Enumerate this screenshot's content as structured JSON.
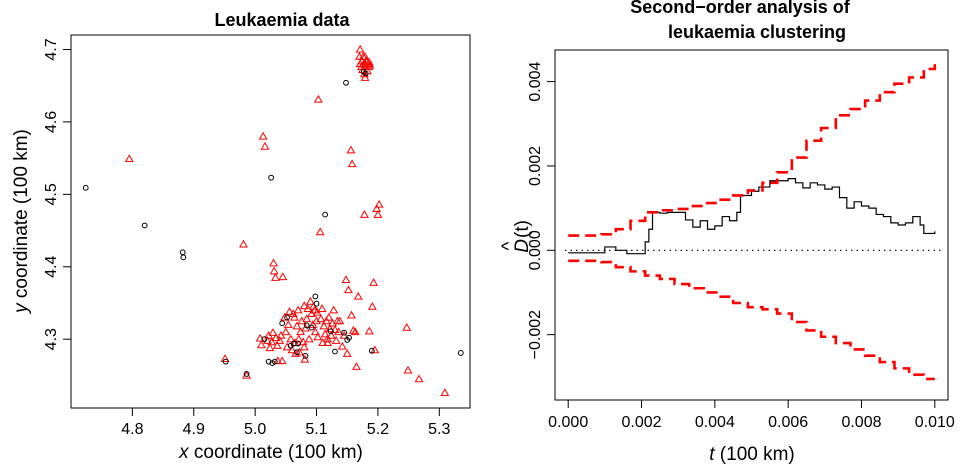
{
  "chart_data": [
    {
      "type": "scatter",
      "title": "Leukaemia data",
      "xlabel": {
        "var": "x",
        "text": " coordinate (100 km)"
      },
      "ylabel": {
        "var": "y",
        "text": " coordinate (100 km)"
      },
      "xlim": [
        4.7,
        5.35
      ],
      "ylim": [
        4.205,
        4.72
      ],
      "xticks": [
        "4.8",
        "4.9",
        "5.0",
        "5.1",
        "5.2",
        "5.3"
      ],
      "yticks": [
        "4.3",
        "4.4",
        "4.5",
        "4.6",
        "4.7"
      ],
      "grid": false,
      "series": [
        {
          "marker": "triangle",
          "color": "#ff0000",
          "points": [
            [
              4.795,
              4.549
            ],
            [
              4.951,
              4.273
            ],
            [
              4.986,
              4.25
            ],
            [
              4.981,
              4.431
            ],
            [
              5.008,
              4.301
            ],
            [
              5.01,
              4.292
            ],
            [
              5.013,
              4.58
            ],
            [
              5.016,
              4.566
            ],
            [
              5.02,
              4.298
            ],
            [
              5.022,
              4.305
            ],
            [
              5.024,
              4.288
            ],
            [
              5.027,
              4.296
            ],
            [
              5.029,
              4.309
            ],
            [
              5.03,
              4.405
            ],
            [
              5.031,
              4.394
            ],
            [
              5.033,
              4.385
            ],
            [
              5.034,
              4.302
            ],
            [
              5.036,
              4.291
            ],
            [
              5.037,
              4.27
            ],
            [
              5.04,
              4.298
            ],
            [
              5.042,
              4.305
            ],
            [
              5.044,
              4.27
            ],
            [
              5.045,
              4.386
            ],
            [
              5.048,
              4.33
            ],
            [
              5.05,
              4.31
            ],
            [
              5.052,
              4.289
            ],
            [
              5.054,
              4.32
            ],
            [
              5.056,
              4.338
            ],
            [
              5.058,
              4.3
            ],
            [
              5.06,
              4.285
            ],
            [
              5.062,
              4.335
            ],
            [
              5.064,
              4.33
            ],
            [
              5.065,
              4.295
            ],
            [
              5.066,
              4.28
            ],
            [
              5.068,
              4.318
            ],
            [
              5.07,
              4.34
            ],
            [
              5.071,
              4.3
            ],
            [
              5.072,
              4.282
            ],
            [
              5.074,
              4.31
            ],
            [
              5.076,
              4.325
            ],
            [
              5.078,
              4.296
            ],
            [
              5.08,
              4.346
            ],
            [
              5.08,
              4.289
            ],
            [
              5.081,
              4.272
            ],
            [
              5.082,
              4.315
            ],
            [
              5.084,
              4.328
            ],
            [
              5.086,
              4.342
            ],
            [
              5.088,
              4.3
            ],
            [
              5.09,
              4.352
            ],
            [
              5.092,
              4.335
            ],
            [
              5.094,
              4.32
            ],
            [
              5.095,
              4.345
            ],
            [
              5.097,
              4.34
            ],
            [
              5.098,
              4.31
            ],
            [
              5.1,
              4.325
            ],
            [
              5.101,
              4.337
            ],
            [
              5.102,
              4.303
            ],
            [
              5.103,
              4.631
            ],
            [
              5.106,
              4.448
            ],
            [
              5.107,
              4.328
            ],
            [
              5.109,
              4.342
            ],
            [
              5.11,
              4.295
            ],
            [
              5.112,
              4.318
            ],
            [
              5.114,
              4.307
            ],
            [
              5.116,
              4.325
            ],
            [
              5.118,
              4.3
            ],
            [
              5.12,
              4.33
            ],
            [
              5.122,
              4.314
            ],
            [
              5.124,
              4.305
            ],
            [
              5.126,
              4.322
            ],
            [
              5.128,
              4.34
            ],
            [
              5.13,
              4.313
            ],
            [
              5.132,
              4.298
            ],
            [
              5.134,
              4.325
            ],
            [
              5.136,
              4.31
            ],
            [
              5.138,
              4.325
            ],
            [
              5.142,
              4.29
            ],
            [
              5.145,
              4.305
            ],
            [
              5.148,
              4.382
            ],
            [
              5.152,
              4.368
            ],
            [
              5.156,
              4.561
            ],
            [
              5.158,
              4.542
            ],
            [
              5.16,
              4.312
            ],
            [
              5.163,
              4.31
            ],
            [
              5.165,
              4.262
            ],
            [
              5.168,
              4.359
            ],
            [
              5.17,
              4.69
            ],
            [
              5.171,
              4.7
            ],
            [
              5.171,
              4.68
            ],
            [
              5.173,
              4.676
            ],
            [
              5.174,
              4.684
            ],
            [
              5.175,
              4.672
            ],
            [
              5.176,
              4.69
            ],
            [
              5.177,
              4.68
            ],
            [
              5.178,
              4.666
            ],
            [
              5.179,
              4.69
            ],
            [
              5.18,
              4.678
            ],
            [
              5.181,
              4.684
            ],
            [
              5.182,
              4.683
            ],
            [
              5.183,
              4.67
            ],
            [
              5.184,
              4.68
            ],
            [
              5.185,
              4.676
            ],
            [
              5.186,
              4.682
            ],
            [
              5.187,
              4.678
            ],
            [
              5.179,
              4.661
            ],
            [
              5.178,
              4.472
            ],
            [
              5.186,
              4.311
            ],
            [
              5.191,
              4.345
            ],
            [
              5.193,
              4.378
            ],
            [
              5.195,
              4.285
            ],
            [
              5.198,
              4.48
            ],
            [
              5.2,
              4.472
            ],
            [
              5.202,
              4.486
            ],
            [
              5.247,
              4.316
            ],
            [
              5.249,
              4.257
            ],
            [
              5.267,
              4.245
            ],
            [
              5.309,
              4.226
            ],
            [
              5.157,
              4.333
            ],
            [
              5.15,
              4.28
            ],
            [
              5.118,
              4.295
            ]
          ]
        },
        {
          "marker": "circle",
          "color": "#000000",
          "points": [
            [
              4.724,
              4.509
            ],
            [
              4.82,
              4.457
            ],
            [
              4.882,
              4.42
            ],
            [
              4.883,
              4.413
            ],
            [
              4.952,
              4.269
            ],
            [
              4.986,
              4.252
            ],
            [
              5.015,
              4.3
            ],
            [
              5.022,
              4.269
            ],
            [
              5.026,
              4.523
            ],
            [
              5.028,
              4.267
            ],
            [
              5.032,
              4.269
            ],
            [
              5.044,
              4.322
            ],
            [
              5.052,
              4.33
            ],
            [
              5.058,
              4.291
            ],
            [
              5.063,
              4.294
            ],
            [
              5.068,
              4.282
            ],
            [
              5.07,
              4.294
            ],
            [
              5.082,
              4.277
            ],
            [
              5.084,
              4.319
            ],
            [
              5.092,
              4.316
            ],
            [
              5.098,
              4.359
            ],
            [
              5.1,
              4.349
            ],
            [
              5.114,
              4.472
            ],
            [
              5.123,
              4.311
            ],
            [
              5.13,
              4.283
            ],
            [
              5.145,
              4.309
            ],
            [
              5.148,
              4.654
            ],
            [
              5.15,
              4.299
            ],
            [
              5.153,
              4.302
            ],
            [
              5.177,
              4.669
            ],
            [
              5.18,
              4.667
            ],
            [
              5.19,
              4.284
            ],
            [
              5.335,
              4.281
            ]
          ]
        }
      ]
    },
    {
      "type": "line",
      "title": [
        "Second−order analysis of",
        "leukaemia clustering"
      ],
      "xlabel": {
        "var": "t",
        "text": " (100 km)"
      },
      "ylabel": {
        "var": "D",
        "text": "(t)"
      },
      "xlim": [
        -0.00036,
        0.01036
      ],
      "ylim": [
        -0.00355,
        0.00475
      ],
      "xticks": [
        "0.000",
        "0.002",
        "0.004",
        "0.006",
        "0.008",
        "0.010"
      ],
      "xtick_values": [
        0,
        0.002,
        0.004,
        0.006,
        0.008,
        0.01
      ],
      "yticks": [
        "−0.002",
        "0.000",
        "0.002",
        "0.004"
      ],
      "ytick_values": [
        -0.002,
        0,
        0.002,
        0.004
      ],
      "reference_line": 0,
      "series": [
        {
          "style": "step",
          "color": "#000000",
          "points": [
            [
              0.0,
              -6e-05
            ],
            [
              0.0009,
              -6e-05
            ],
            [
              0.001,
              8e-05
            ],
            [
              0.0013,
              8e-05
            ],
            [
              0.0013,
              0.0
            ],
            [
              0.0016,
              0.0
            ],
            [
              0.0016,
              -8e-05
            ],
            [
              0.002,
              -8e-05
            ],
            [
              0.0021,
              0.0002
            ],
            [
              0.0022,
              0.0005
            ],
            [
              0.0023,
              0.0009
            ],
            [
              0.0025,
              0.00088
            ],
            [
              0.0027,
              0.0009
            ],
            [
              0.003,
              0.0009
            ],
            [
              0.0032,
              0.00072
            ],
            [
              0.0034,
              0.00055
            ],
            [
              0.0036,
              0.0007
            ],
            [
              0.0038,
              0.0005
            ],
            [
              0.004,
              0.00058
            ],
            [
              0.0042,
              0.0008
            ],
            [
              0.0044,
              0.0007
            ],
            [
              0.0046,
              0.0009
            ],
            [
              0.0047,
              0.0013
            ],
            [
              0.005,
              0.0014
            ],
            [
              0.0052,
              0.0015
            ],
            [
              0.0055,
              0.00165
            ],
            [
              0.0058,
              0.00165
            ],
            [
              0.006,
              0.0017
            ],
            [
              0.0062,
              0.0016
            ],
            [
              0.0064,
              0.00148
            ],
            [
              0.0066,
              0.0016
            ],
            [
              0.0068,
              0.00155
            ],
            [
              0.007,
              0.00145
            ],
            [
              0.0072,
              0.0015
            ],
            [
              0.0074,
              0.00125
            ],
            [
              0.0076,
              0.001
            ],
            [
              0.0078,
              0.00115
            ],
            [
              0.008,
              0.00105
            ],
            [
              0.0082,
              0.001
            ],
            [
              0.0084,
              0.00085
            ],
            [
              0.0086,
              0.0008
            ],
            [
              0.0088,
              0.00065
            ],
            [
              0.009,
              0.0006
            ],
            [
              0.0092,
              0.00065
            ],
            [
              0.0094,
              0.0008
            ],
            [
              0.0096,
              0.0006
            ],
            [
              0.0097,
              0.0004
            ],
            [
              0.0099,
              0.0004
            ],
            [
              0.01,
              0.00045
            ]
          ]
        },
        {
          "style": "dashed-step",
          "color": "#ff0000",
          "points": [
            [
              0.0,
              0.00035
            ],
            [
              0.0009,
              0.00038
            ],
            [
              0.0013,
              0.0005
            ],
            [
              0.0017,
              0.0007
            ],
            [
              0.0021,
              0.0009
            ],
            [
              0.0025,
              0.00095
            ],
            [
              0.0029,
              0.00098
            ],
            [
              0.0033,
              0.00105
            ],
            [
              0.0037,
              0.00112
            ],
            [
              0.0041,
              0.0012
            ],
            [
              0.0045,
              0.0013
            ],
            [
              0.0049,
              0.00142
            ],
            [
              0.0053,
              0.0016
            ],
            [
              0.0057,
              0.00185
            ],
            [
              0.0061,
              0.0022
            ],
            [
              0.0065,
              0.0026
            ],
            [
              0.0069,
              0.0029
            ],
            [
              0.0073,
              0.0032
            ],
            [
              0.0077,
              0.00335
            ],
            [
              0.0081,
              0.00355
            ],
            [
              0.0085,
              0.00375
            ],
            [
              0.0089,
              0.00395
            ],
            [
              0.0093,
              0.0041
            ],
            [
              0.0097,
              0.0043
            ],
            [
              0.01,
              0.0045
            ]
          ]
        },
        {
          "style": "dashed-step",
          "color": "#ff0000",
          "points": [
            [
              0.0,
              -0.00025
            ],
            [
              0.0009,
              -0.00028
            ],
            [
              0.0013,
              -0.0004
            ],
            [
              0.0017,
              -0.0005
            ],
            [
              0.0021,
              -0.0006
            ],
            [
              0.0025,
              -0.00068
            ],
            [
              0.0029,
              -0.0008
            ],
            [
              0.0033,
              -0.0009
            ],
            [
              0.0037,
              -0.001
            ],
            [
              0.0041,
              -0.0011
            ],
            [
              0.0045,
              -0.00125
            ],
            [
              0.0049,
              -0.00135
            ],
            [
              0.0053,
              -0.0014
            ],
            [
              0.0057,
              -0.0015
            ],
            [
              0.0061,
              -0.0017
            ],
            [
              0.0065,
              -0.0019
            ],
            [
              0.0069,
              -0.00205
            ],
            [
              0.0073,
              -0.0022
            ],
            [
              0.0077,
              -0.00235
            ],
            [
              0.0081,
              -0.0025
            ],
            [
              0.0085,
              -0.00265
            ],
            [
              0.0089,
              -0.0028
            ],
            [
              0.0093,
              -0.00295
            ],
            [
              0.0097,
              -0.00305
            ],
            [
              0.01,
              -0.00305
            ]
          ]
        }
      ]
    }
  ]
}
